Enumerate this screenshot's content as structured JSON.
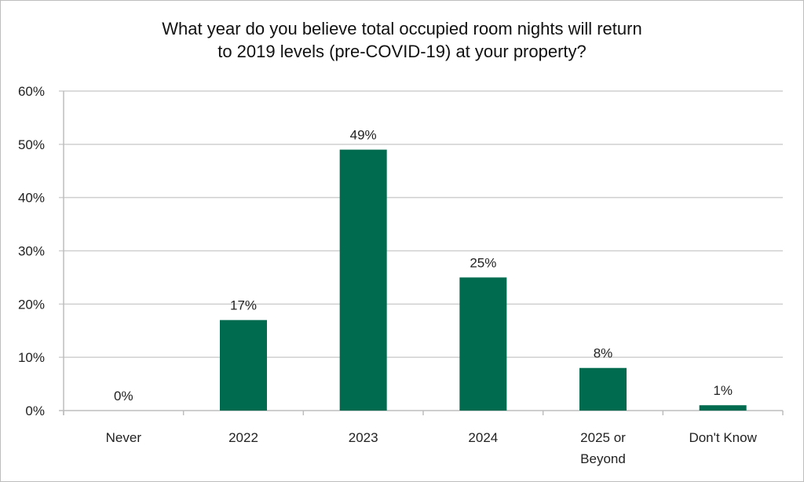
{
  "chart_data": {
    "type": "bar",
    "title_lines": [
      "What year do you believe total occupied room nights will return",
      "to 2019 levels (pre-COVID-19) at your property?"
    ],
    "categories": [
      [
        "Never"
      ],
      [
        "2022"
      ],
      [
        "2023"
      ],
      [
        "2024"
      ],
      [
        "2025 or",
        "Beyond"
      ],
      [
        "Don't Know"
      ]
    ],
    "values": [
      0,
      17,
      49,
      25,
      8,
      1
    ],
    "data_labels": [
      "0%",
      "17%",
      "49%",
      "25%",
      "8%",
      "1%"
    ],
    "yticks": [
      "0%",
      "10%",
      "20%",
      "30%",
      "40%",
      "50%",
      "60%"
    ],
    "ylim": [
      0,
      60
    ],
    "grid": true,
    "legend": "none",
    "bar_color": "#006b4f",
    "grid_color": "#cfcfcf"
  }
}
